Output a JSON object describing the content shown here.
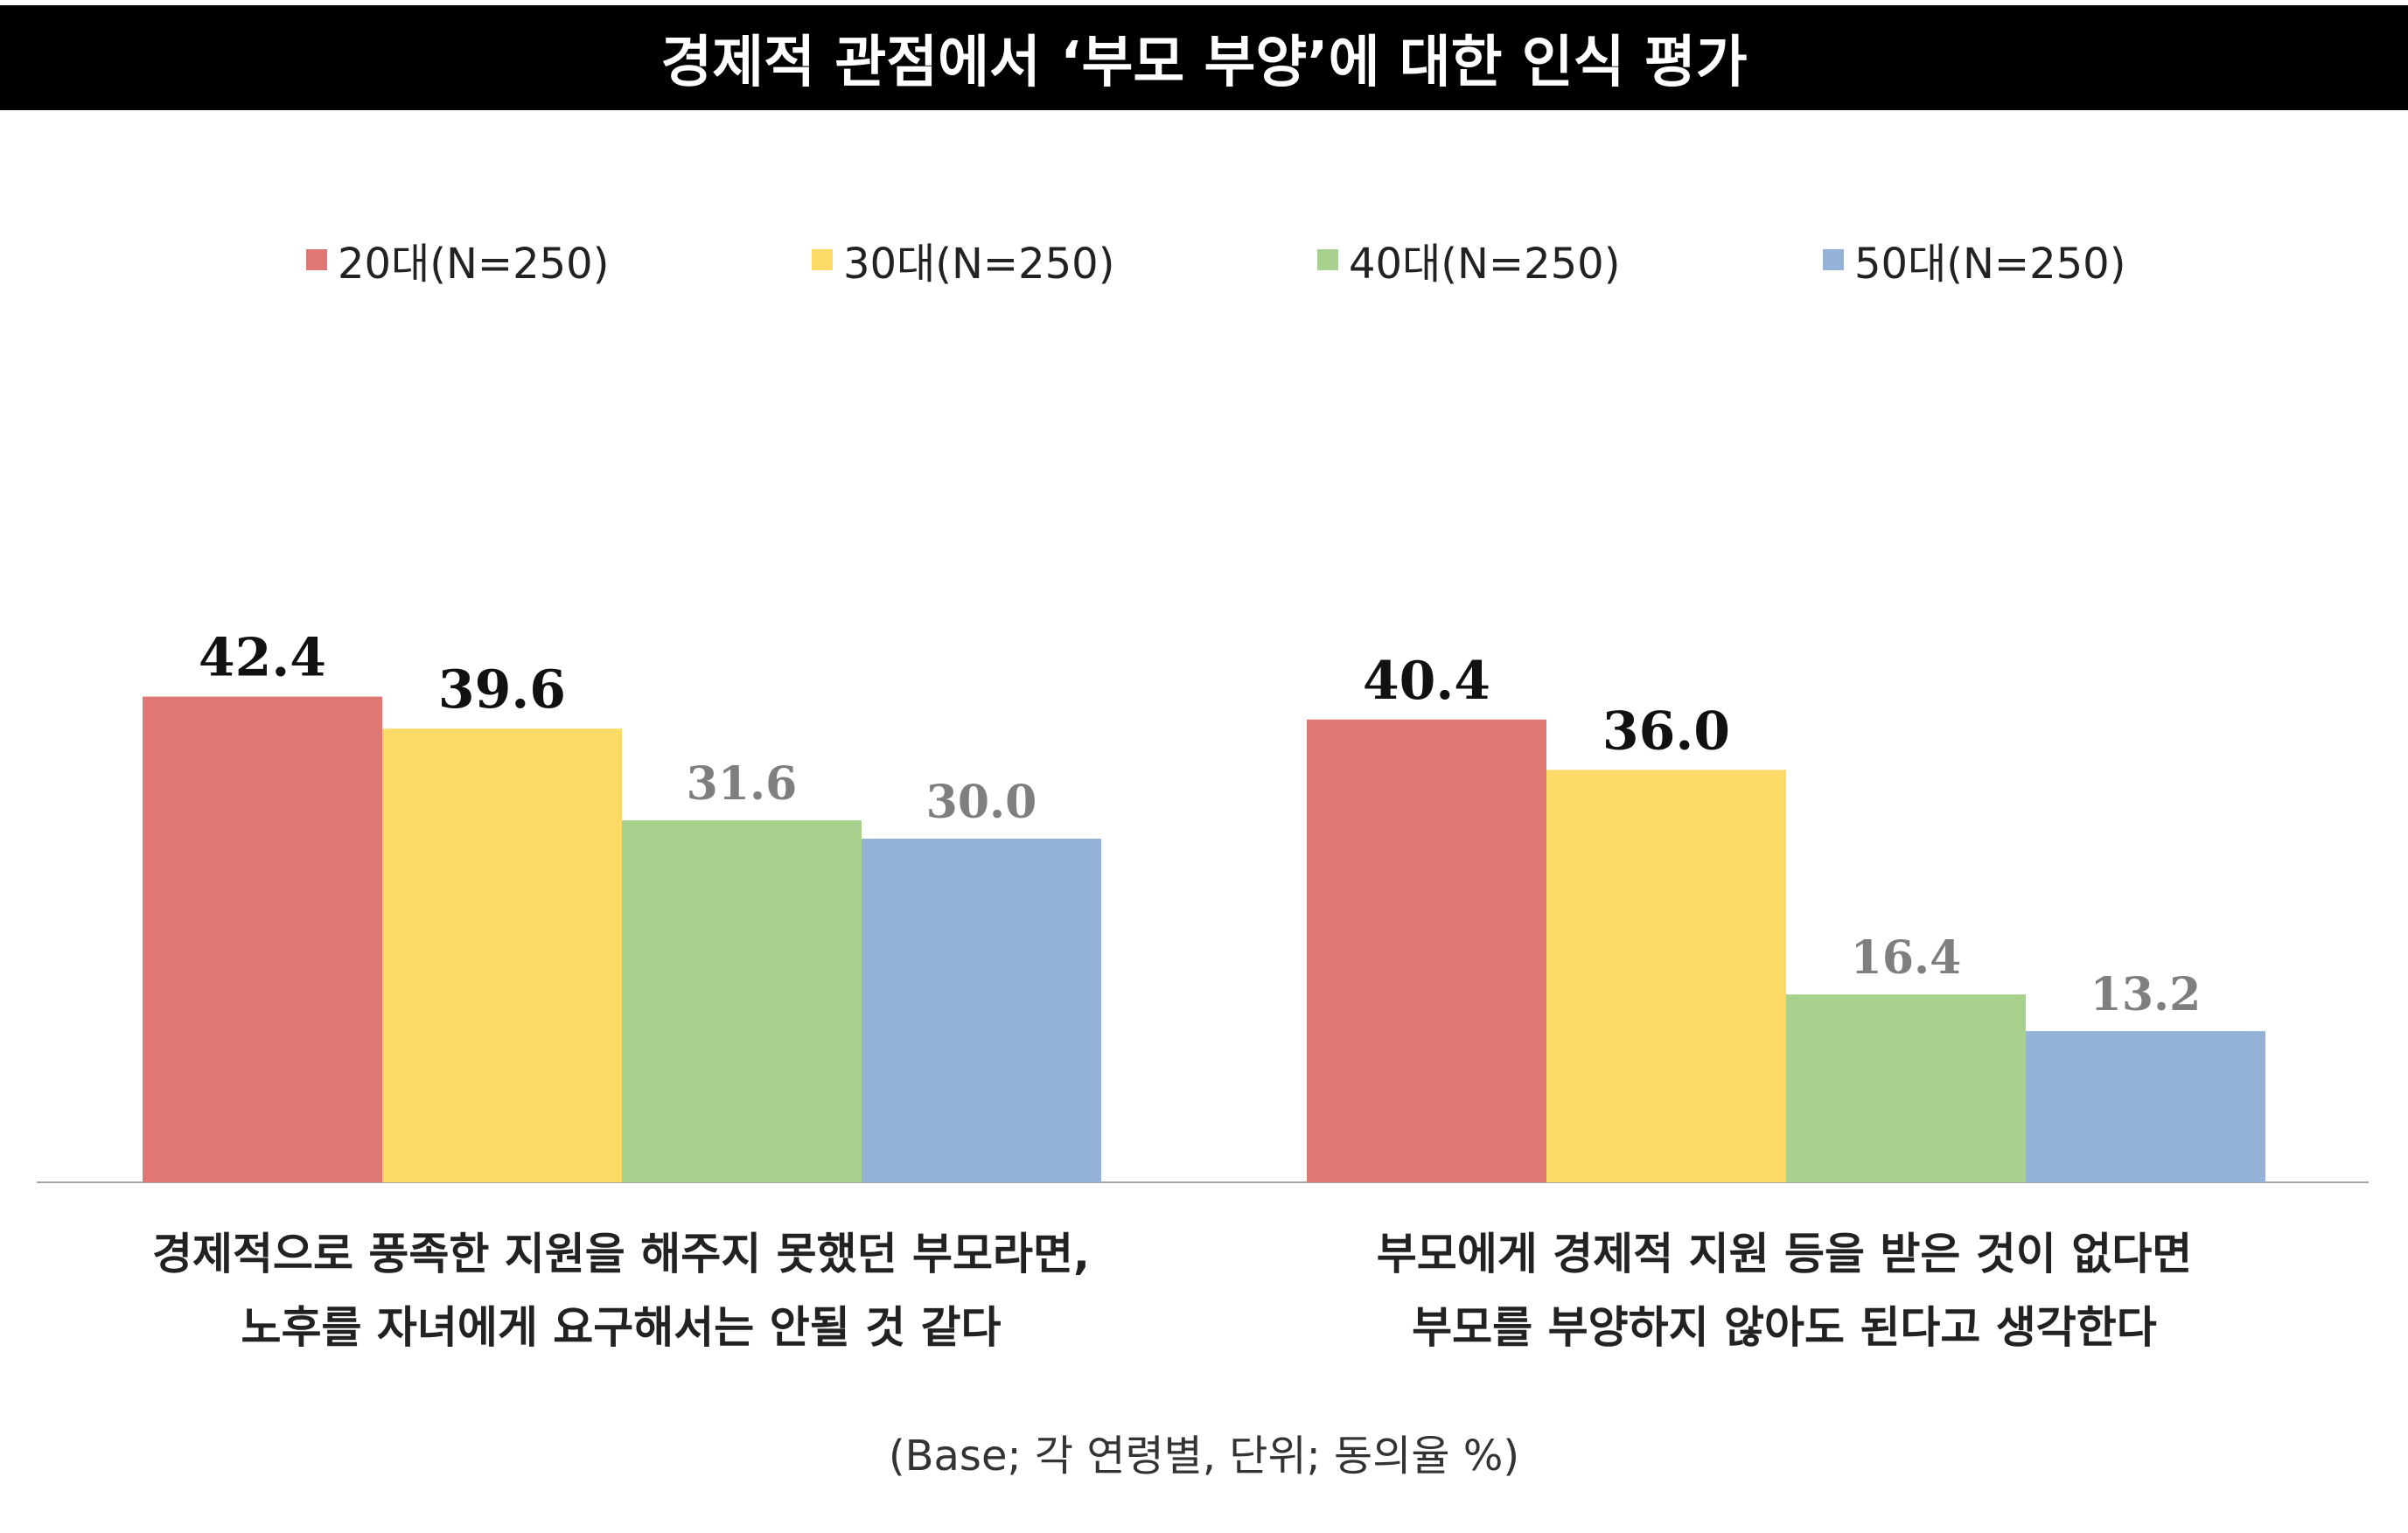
{
  "title": "경제적 관점에서 ‘부모 부양’에 대한 인식 평가",
  "footnote": "(Base; 각 연령별, 단위; 동의율 %)",
  "chart_data": {
    "type": "bar",
    "title": "경제적 관점에서 ‘부모 부양’에 대한 인식 평가",
    "categories": [
      [
        "경제적으로 풍족한 지원을 해주지 못했던 부모라면,",
        "노후를 자녀에게 요구해서는 안될 것 같다"
      ],
      [
        "부모에게 경제적 지원 등을 받은 것이 없다면",
        "부모를 부양하지 않아도 된다고 생각한다"
      ]
    ],
    "series": [
      {
        "name": "20대(N=250)",
        "color": "#df7773",
        "values": [
          42.4,
          40.4
        ]
      },
      {
        "name": "30대(N=250)",
        "color": "#fdd966",
        "values": [
          39.6,
          36.0
        ]
      },
      {
        "name": "40대(N=250)",
        "color": "#a8d18e",
        "values": [
          31.6,
          16.4
        ]
      },
      {
        "name": "50대(N=250)",
        "color": "#95b3d9",
        "values": [
          30.0,
          13.2
        ]
      }
    ],
    "label_colors": {
      "highlight": "#111111",
      "muted": "#7f7f7f"
    },
    "highlighted_series": [
      "20대(N=250)",
      "30대(N=250)"
    ],
    "ylim": [
      0,
      100
    ],
    "legend_position": "top",
    "grid": false,
    "xlabel": "",
    "ylabel": ""
  }
}
